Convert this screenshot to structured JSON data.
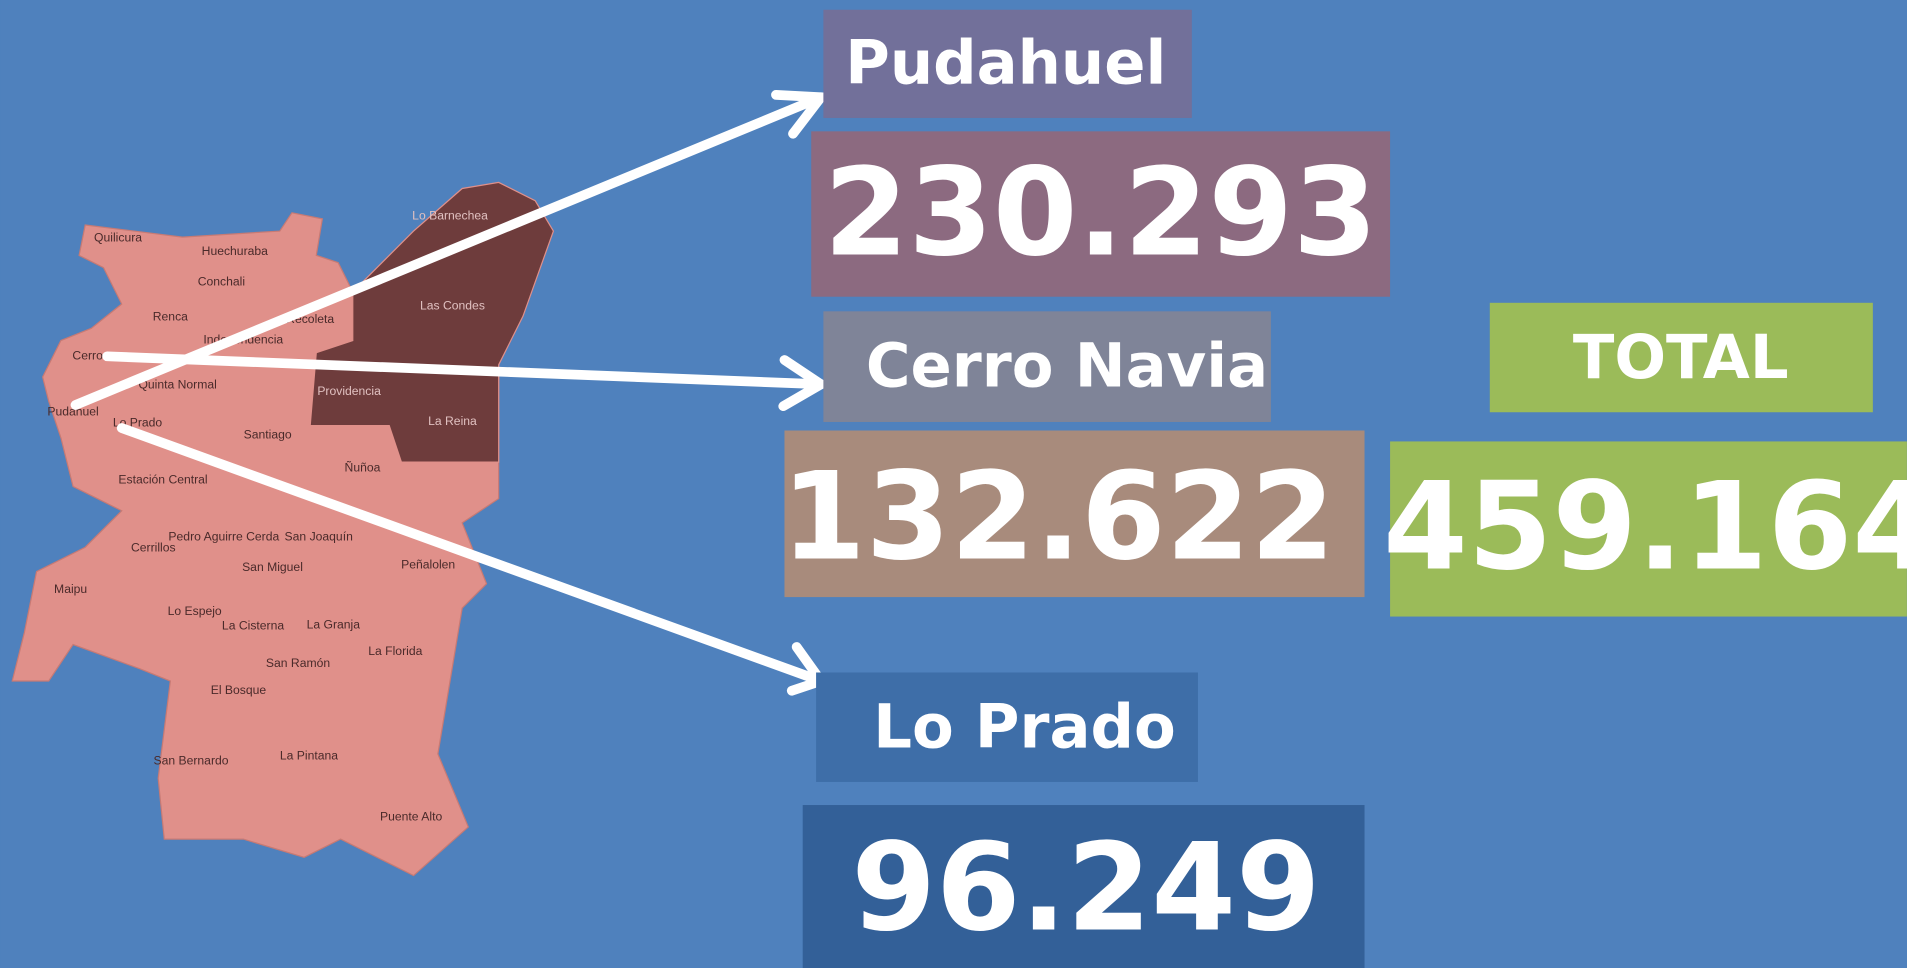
{
  "map": {
    "labels": [
      "Quilicura",
      "Huechuraba",
      "Conchali",
      "Renca",
      "Independencia",
      "Recoleta",
      "Lo Barnechea",
      "Las Condes",
      "Providencia",
      "La Reina",
      "Cerro",
      "Quinta Normal",
      "Pudahuel",
      "Lo Prado",
      "Santiago",
      "Ñuñoa",
      "Estación Central",
      "Pedro Aguirre Cerda",
      "San Joaquín",
      "Cerrillos",
      "San Miguel",
      "Peñalolen",
      "Maipu",
      "Lo Espejo",
      "La Cisterna",
      "La Granja",
      "La Florida",
      "San Ramón",
      "El Bosque",
      "San Bernardo",
      "La Pintana",
      "Puente Alto"
    ]
  },
  "boxes": [
    {
      "name": "Pudahuel",
      "value": "230.293"
    },
    {
      "name": "Cerro Navia",
      "value": "132.622"
    },
    {
      "name": "Lo Prado",
      "value": "96.249"
    }
  ],
  "total": {
    "label": "TOTAL",
    "value": "459.164"
  }
}
